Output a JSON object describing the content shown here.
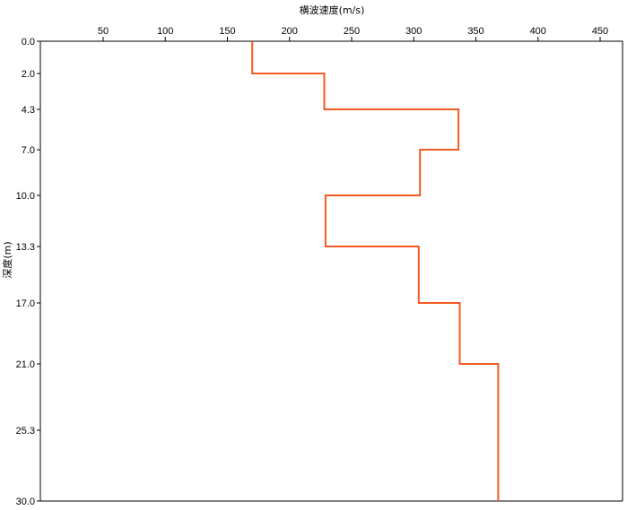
{
  "chart_data": {
    "type": "line",
    "title": "",
    "xlabel": "横波速度(m/s)",
    "ylabel": "深度(m)",
    "x_axis_position": "top",
    "y_axis_inverted": true,
    "xlim": [
      0,
      470
    ],
    "ylim": [
      0,
      30
    ],
    "x_ticks": [
      50,
      100,
      150,
      200,
      250,
      300,
      350,
      400,
      450
    ],
    "y_ticks": [
      "0.0",
      "2.0",
      "4.3",
      "7.0",
      "10.0",
      "13.3",
      "17.0",
      "21.0",
      "25.3",
      "30.0"
    ],
    "grid": false,
    "legend": "none",
    "series": [
      {
        "color": "#f25a22",
        "points": [
          {
            "x": 170,
            "y": 0.0
          },
          {
            "x": 170,
            "y": 2.0
          },
          {
            "x": 228,
            "y": 2.0
          },
          {
            "x": 228,
            "y": 4.3
          },
          {
            "x": 336,
            "y": 4.3
          },
          {
            "x": 336,
            "y": 7.0
          },
          {
            "x": 305,
            "y": 7.0
          },
          {
            "x": 305,
            "y": 10.0
          },
          {
            "x": 229,
            "y": 10.0
          },
          {
            "x": 229,
            "y": 13.3
          },
          {
            "x": 304,
            "y": 13.3
          },
          {
            "x": 304,
            "y": 17.0
          },
          {
            "x": 337,
            "y": 17.0
          },
          {
            "x": 337,
            "y": 21.0
          },
          {
            "x": 368,
            "y": 21.0
          },
          {
            "x": 368,
            "y": 30.0
          }
        ]
      }
    ]
  }
}
